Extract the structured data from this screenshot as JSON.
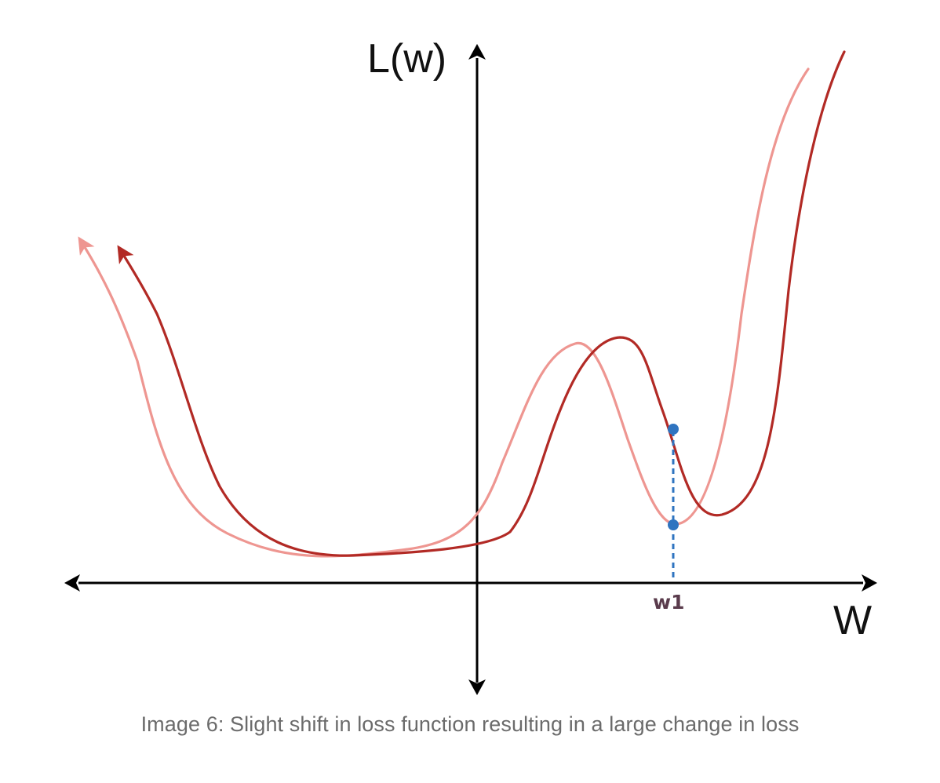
{
  "figure": {
    "y_axis_label": "L(w)",
    "x_axis_label": "W",
    "point_label": "w1",
    "colors": {
      "axis": "#000000",
      "shifted_curve": "#ee9691",
      "original_curve": "#b22a25",
      "marker": "#2f74c0"
    }
  },
  "caption": "Image 6: Slight shift in loss function resulting in a large change in loss"
}
